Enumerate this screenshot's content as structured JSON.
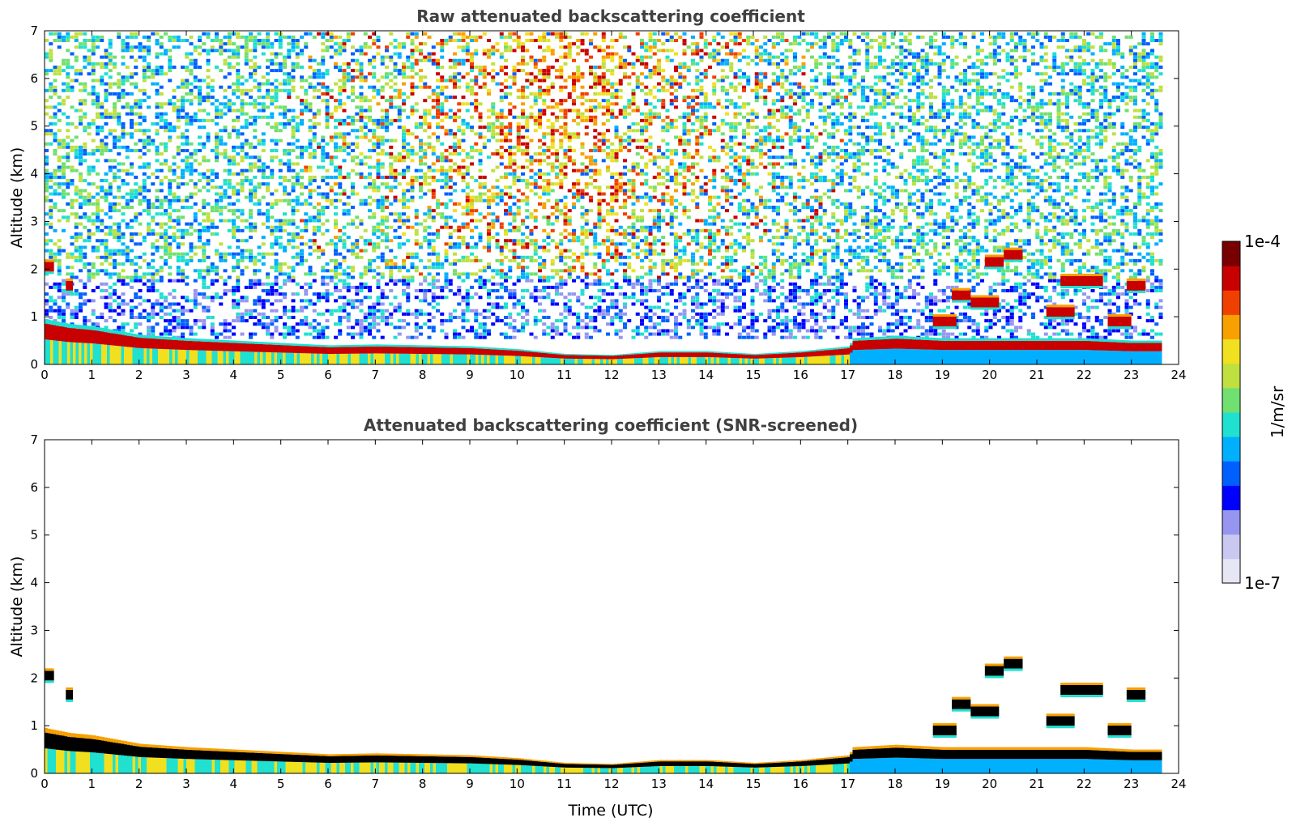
{
  "chart_data": [
    {
      "type": "heatmap",
      "title": "Raw attenuated backscattering coefficient",
      "xlabel": "",
      "ylabel": "Altitude (km)",
      "xlim": [
        0,
        24
      ],
      "ylim": [
        0,
        7
      ],
      "xticks": [
        "0",
        "1",
        "2",
        "3",
        "4",
        "5",
        "6",
        "7",
        "8",
        "9",
        "10",
        "11",
        "12",
        "13",
        "14",
        "15",
        "16",
        "17",
        "18",
        "19",
        "20",
        "21",
        "22",
        "23",
        "24"
      ],
      "yticks": [
        "0",
        "1",
        "2",
        "3",
        "4",
        "5",
        "6",
        "7"
      ],
      "data_end_time": 23.6,
      "layer_top_km": [
        {
          "t": 0,
          "h": 0.95
        },
        {
          "t": 0.5,
          "h": 0.85
        },
        {
          "t": 1,
          "h": 0.8
        },
        {
          "t": 2,
          "h": 0.62
        },
        {
          "t": 3,
          "h": 0.55
        },
        {
          "t": 4,
          "h": 0.5
        },
        {
          "t": 5,
          "h": 0.45
        },
        {
          "t": 6,
          "h": 0.4
        },
        {
          "t": 7,
          "h": 0.42
        },
        {
          "t": 8,
          "h": 0.4
        },
        {
          "t": 9,
          "h": 0.38
        },
        {
          "t": 10,
          "h": 0.32
        },
        {
          "t": 11,
          "h": 0.22
        },
        {
          "t": 12,
          "h": 0.2
        },
        {
          "t": 13,
          "h": 0.28
        },
        {
          "t": 14,
          "h": 0.28
        },
        {
          "t": 15,
          "h": 0.22
        },
        {
          "t": 16,
          "h": 0.28
        },
        {
          "t": 17,
          "h": 0.38
        },
        {
          "t": 17.1,
          "h": 0.55
        },
        {
          "t": 18,
          "h": 0.6
        },
        {
          "t": 19,
          "h": 0.55
        },
        {
          "t": 20,
          "h": 0.55
        },
        {
          "t": 21,
          "h": 0.55
        },
        {
          "t": 22,
          "h": 0.55
        },
        {
          "t": 23,
          "h": 0.5
        },
        {
          "t": 23.6,
          "h": 0.5
        }
      ],
      "cloud_layers": [
        {
          "t0": 0.0,
          "t1": 0.2,
          "h": 2.05
        },
        {
          "t0": 0.45,
          "t1": 0.6,
          "h": 1.65
        },
        {
          "t0": 18.8,
          "t1": 19.3,
          "h": 0.9
        },
        {
          "t0": 19.2,
          "t1": 19.6,
          "h": 1.45
        },
        {
          "t0": 19.6,
          "t1": 20.2,
          "h": 1.3
        },
        {
          "t0": 19.9,
          "t1": 20.3,
          "h": 2.15
        },
        {
          "t0": 20.3,
          "t1": 20.7,
          "h": 2.3
        },
        {
          "t0": 21.2,
          "t1": 21.8,
          "h": 1.1
        },
        {
          "t0": 21.5,
          "t1": 22.4,
          "h": 1.75
        },
        {
          "t0": 22.5,
          "t1": 23.0,
          "h": 0.9
        },
        {
          "t0": 22.9,
          "t1": 23.3,
          "h": 1.65
        }
      ]
    },
    {
      "type": "heatmap",
      "title": "Attenuated backscattering coefficient (SNR-screened)",
      "xlabel": "Time (UTC)",
      "ylabel": "Altitude (km)",
      "xlim": [
        0,
        24
      ],
      "ylim": [
        0,
        7
      ],
      "xticks": [
        "0",
        "1",
        "2",
        "3",
        "4",
        "5",
        "6",
        "7",
        "8",
        "9",
        "10",
        "11",
        "12",
        "13",
        "14",
        "15",
        "16",
        "17",
        "18",
        "19",
        "20",
        "21",
        "22",
        "23",
        "24"
      ],
      "yticks": [
        "0",
        "1",
        "2",
        "3",
        "4",
        "5",
        "6",
        "7"
      ],
      "data_end_time": 23.6
    }
  ],
  "colorbar": {
    "label": "1/m/sr",
    "max_label": "1e-4",
    "min_label": "1e-7",
    "colors": [
      "#e6e6f5",
      "#c8c8f0",
      "#9696f0",
      "#0000ff",
      "#0060ff",
      "#00b0ff",
      "#20e0d0",
      "#70e070",
      "#c0e040",
      "#f0e020",
      "#f8a000",
      "#f04000",
      "#c80000",
      "#780000"
    ]
  }
}
